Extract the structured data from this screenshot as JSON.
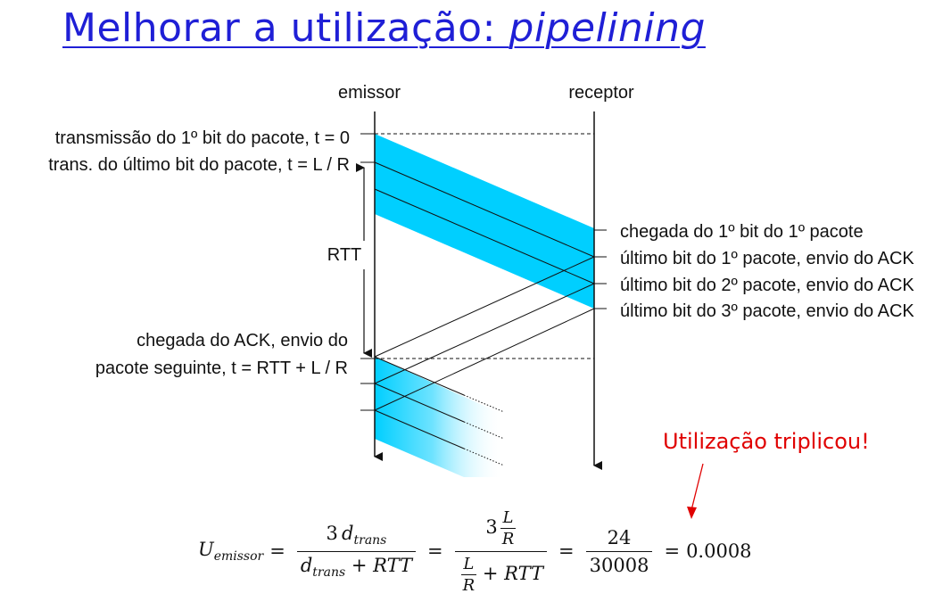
{
  "title": {
    "main": "Melhorar a utilização: ",
    "emph": "pipelining"
  },
  "columns": {
    "sender": "emissor",
    "receiver": "receptor"
  },
  "left_labels": {
    "first_bit": "transmissão do 1º bit do pacote, t = 0",
    "last_bit": "trans. do último bit do pacote, t = L / R",
    "rtt": "RTT",
    "ack_line1": "chegada do ACK, envio do",
    "ack_line2": "pacote seguinte, t = RTT + L / R"
  },
  "right_labels": [
    "chegada do 1º bit do 1º pacote",
    "último bit do 1º pacote, envio do ACK",
    "último bit do 2º pacote, envio do ACK",
    "último bit do 3º pacote, envio do ACK"
  ],
  "callout": "Utilização triplicou!",
  "formula": {
    "lhs_var": "U",
    "lhs_sub": "emissor",
    "coef": "3",
    "d": "d",
    "trans": "trans",
    "plus": "+",
    "rtt": "RTT",
    "L": "L",
    "R": "R",
    "num_value": "24",
    "den_value": "30008",
    "equals": "=",
    "result": "0.0008"
  },
  "colors": {
    "title": "#1f1fd6",
    "packet": "#00cfff",
    "callout": "#e00000"
  }
}
